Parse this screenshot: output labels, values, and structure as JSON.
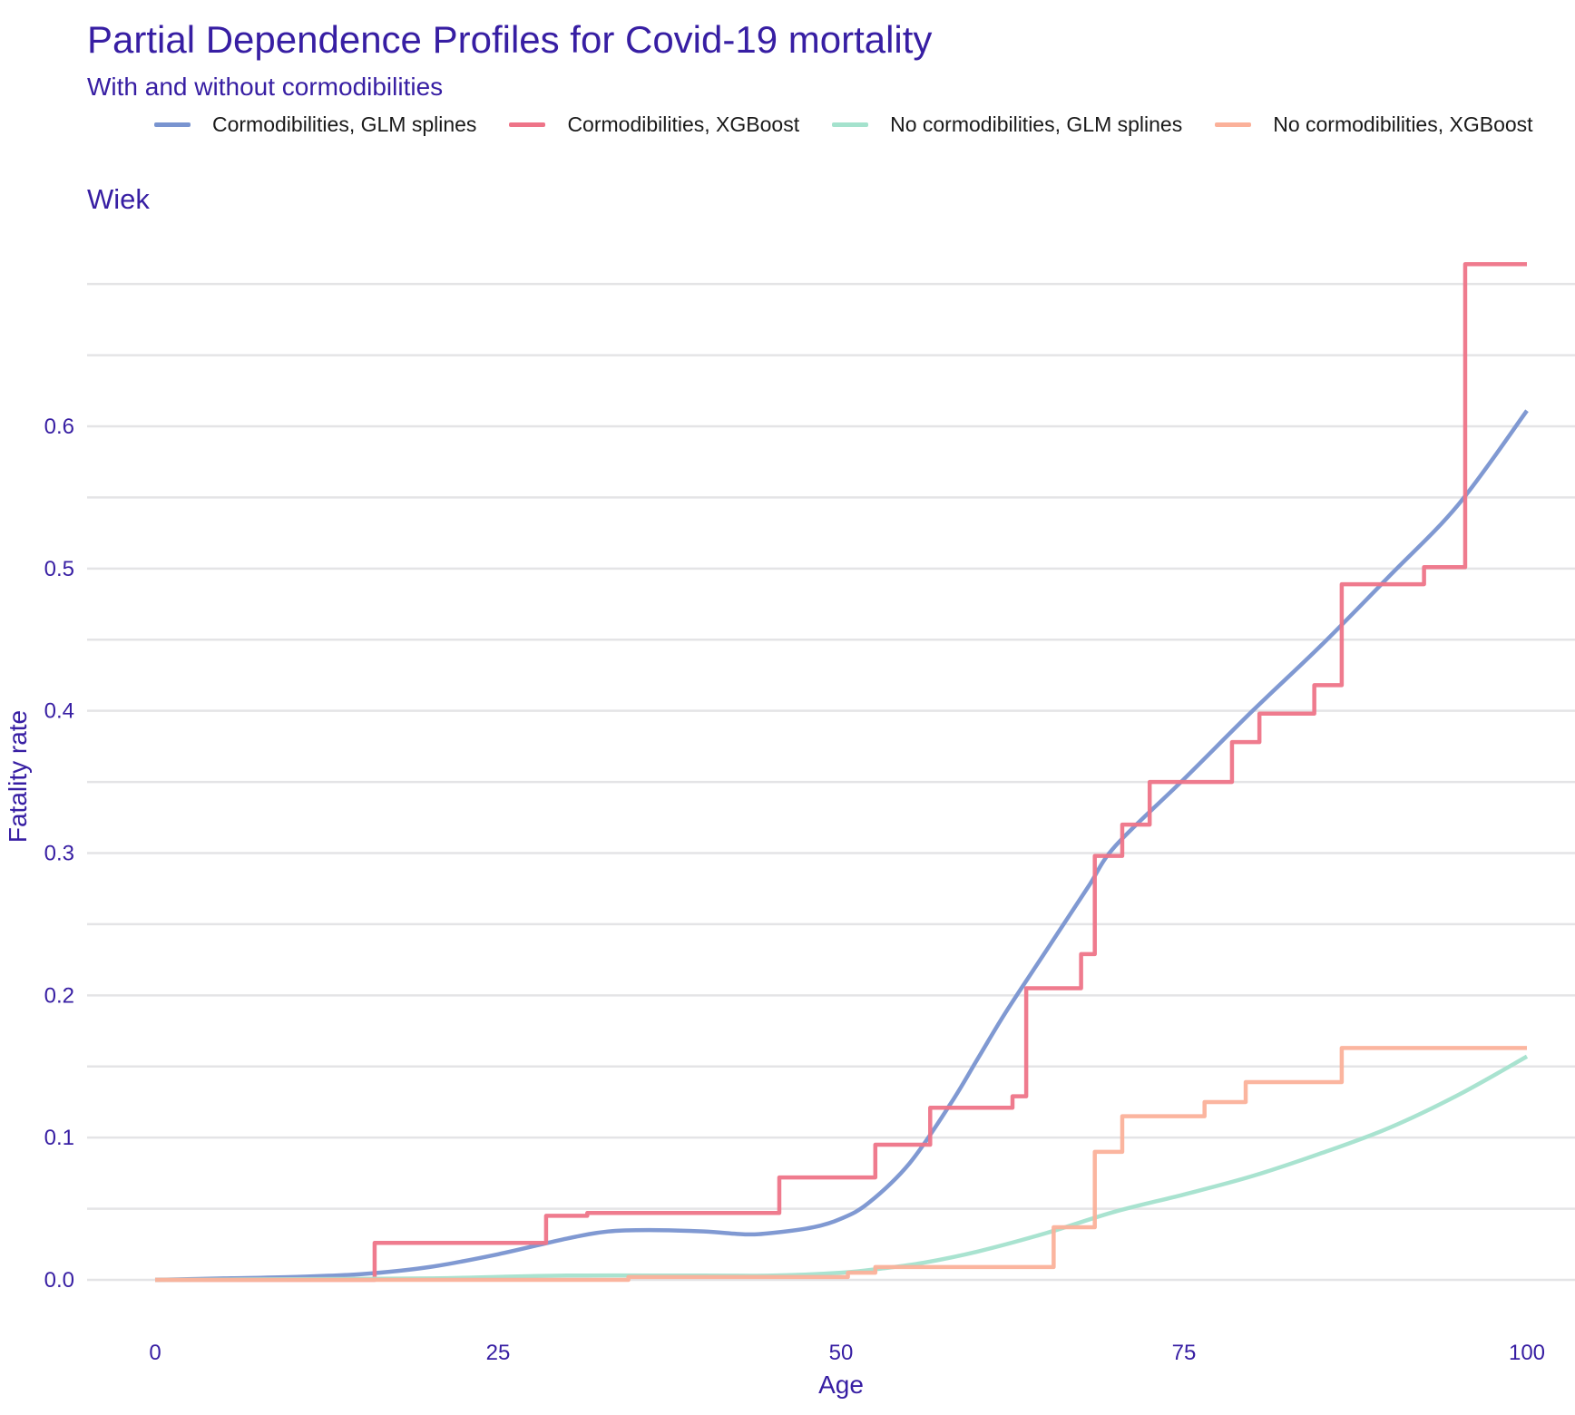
{
  "title": "Partial Dependence Profiles for Covid-19 mortality",
  "subtitle": "With and without cormodibilities",
  "facet": "Wiek",
  "colors": {
    "text": "#371ea3",
    "grid": "#e4e4e6",
    "glm_comorb": "#7994d0",
    "xgb_comorb": "#ee7488",
    "glm_nocomorb": "#a4e2cd",
    "xgb_nocomorb": "#fbb19a"
  },
  "chart_data": {
    "type": "line",
    "title": "Partial Dependence Profiles for Covid-19 mortality",
    "subtitle": "With and without cormodibilities",
    "facet": "Wiek",
    "xlabel": "Age",
    "ylabel": "Fatality rate",
    "xlim": [
      -5,
      105
    ],
    "ylim": [
      -0.03,
      0.72
    ],
    "xticks": [
      0,
      25,
      50,
      75,
      100
    ],
    "yticks": [
      0.0,
      0.1,
      0.2,
      0.3,
      0.4,
      0.5,
      0.6
    ],
    "ytick_labels": [
      "0.0",
      "0.1",
      "0.2",
      "0.3",
      "0.4",
      "0.5",
      "0.6"
    ],
    "minor_y_gridlines": [
      0.05,
      0.15,
      0.25,
      0.35,
      0.45,
      0.55,
      0.65,
      0.7
    ],
    "grid": true,
    "legend_position": "top",
    "series": [
      {
        "name": "Cormodibilities, GLM splines",
        "color": "#7994d0",
        "step": false,
        "x": [
          0,
          5,
          10,
          15,
          20,
          25,
          30,
          33,
          36,
          40,
          43,
          45,
          48,
          50,
          52,
          55,
          58,
          60,
          62,
          65,
          68,
          70,
          75,
          80,
          85,
          90,
          95,
          100
        ],
        "y": [
          0.0,
          0.001,
          0.002,
          0.004,
          0.009,
          0.018,
          0.029,
          0.034,
          0.035,
          0.034,
          0.032,
          0.033,
          0.037,
          0.043,
          0.054,
          0.082,
          0.124,
          0.156,
          0.188,
          0.232,
          0.276,
          0.305,
          0.352,
          0.4,
          0.446,
          0.495,
          0.545,
          0.611
        ]
      },
      {
        "name": "Cormodibilities, XGBoost",
        "color": "#ee7488",
        "step": true,
        "x": [
          0,
          16,
          28.5,
          31.5,
          45.5,
          52.5,
          56.5,
          62.5,
          63.5,
          67.5,
          68.5,
          70.5,
          72.5,
          78.5,
          80.5,
          84.5,
          86.5,
          92.5,
          95.5,
          100
        ],
        "y": [
          0.0,
          0.026,
          0.045,
          0.047,
          0.072,
          0.095,
          0.121,
          0.129,
          0.205,
          0.229,
          0.298,
          0.32,
          0.35,
          0.378,
          0.398,
          0.418,
          0.489,
          0.501,
          0.714,
          0.714
        ]
      },
      {
        "name": "No cormodibilities, GLM splines",
        "color": "#a4e2cd",
        "step": false,
        "x": [
          0,
          10,
          20,
          30,
          40,
          45,
          50,
          53,
          56,
          60,
          65,
          70,
          75,
          80,
          85,
          90,
          95,
          100
        ],
        "y": [
          0.0,
          0.0005,
          0.001,
          0.003,
          0.003,
          0.003,
          0.005,
          0.008,
          0.012,
          0.02,
          0.033,
          0.048,
          0.06,
          0.073,
          0.089,
          0.107,
          0.13,
          0.157
        ]
      },
      {
        "name": "No cormodibilities, XGBoost",
        "color": "#fbb19a",
        "step": true,
        "x": [
          0,
          34.5,
          50.5,
          52.5,
          65.5,
          68.5,
          70.5,
          76.5,
          79.5,
          86.5,
          100
        ],
        "y": [
          0.0,
          0.002,
          0.005,
          0.009,
          0.037,
          0.09,
          0.115,
          0.125,
          0.139,
          0.163,
          0.163
        ]
      }
    ]
  }
}
